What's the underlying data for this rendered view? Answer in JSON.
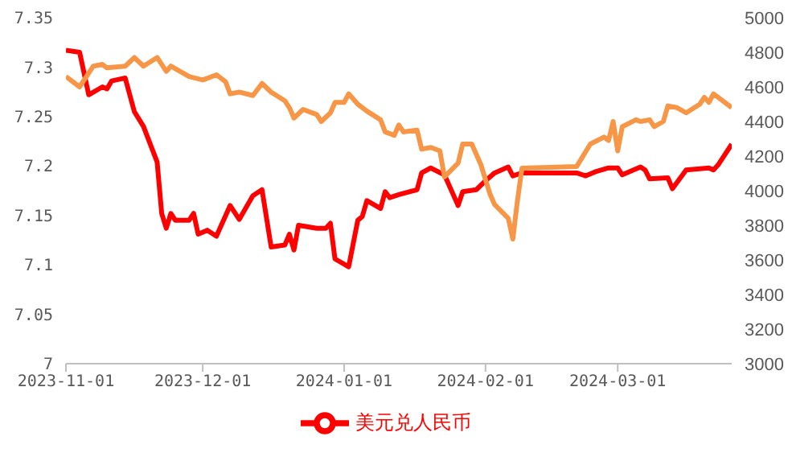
{
  "chart_data": {
    "type": "line",
    "xlim": [
      "2023-11-01",
      "2024-03-26"
    ],
    "xticks": [
      "2023-11-01",
      "2023-12-01",
      "2024-01-01",
      "2024-02-01",
      "2024-03-01"
    ],
    "ylim": [
      7,
      7.35
    ],
    "yticks": [
      7,
      7.05,
      7.1,
      7.15,
      7.2,
      7.25,
      7.3,
      7.35
    ],
    "y2lim": [
      3000,
      5000
    ],
    "y2ticks": [
      3000,
      3200,
      3400,
      3600,
      3800,
      4000,
      4200,
      4400,
      4600,
      4800,
      5000
    ],
    "grid": false,
    "legend": "bottom",
    "marker": "none",
    "line_style": "solid",
    "series": [
      {
        "name": "美元兑人民币",
        "color": "#ff0000",
        "x": [
          "2023-11-01",
          "2023-11-04",
          "2023-11-06",
          "2023-11-09",
          "2023-11-10",
          "2023-11-11",
          "2023-11-14",
          "2023-11-16",
          "2023-11-18",
          "2023-11-21",
          "2023-11-22",
          "2023-11-23",
          "2023-11-24",
          "2023-11-25",
          "2023-11-28",
          "2023-11-29",
          "2023-11-30",
          "2023-12-02",
          "2023-12-04",
          "2023-12-07",
          "2023-12-09",
          "2023-12-12",
          "2023-12-14",
          "2023-12-16",
          "2023-12-19",
          "2023-12-20",
          "2023-12-21",
          "2023-12-22",
          "2023-12-26",
          "2023-12-28",
          "2023-12-29",
          "2023-12-30",
          "2024-01-02",
          "2024-01-04",
          "2024-01-05",
          "2024-01-06",
          "2024-01-09",
          "2024-01-10",
          "2024-01-11",
          "2024-01-13",
          "2024-01-17",
          "2024-01-18",
          "2024-01-20",
          "2024-01-23",
          "2024-01-26",
          "2024-01-27",
          "2024-01-30",
          "2024-02-01",
          "2024-02-03",
          "2024-02-06",
          "2024-02-07",
          "2024-02-09",
          "2024-02-21",
          "2024-02-23",
          "2024-02-25",
          "2024-02-28",
          "2024-03-01",
          "2024-03-02",
          "2024-03-06",
          "2024-03-07",
          "2024-03-08",
          "2024-03-12",
          "2024-03-13",
          "2024-03-16",
          "2024-03-21",
          "2024-03-22",
          "2024-03-23",
          "2024-03-26"
        ],
        "values": [
          7.317,
          7.315,
          7.272,
          7.28,
          7.278,
          7.286,
          7.289,
          7.255,
          7.24,
          7.204,
          7.152,
          7.137,
          7.152,
          7.145,
          7.145,
          7.152,
          7.131,
          7.135,
          7.129,
          7.16,
          7.146,
          7.17,
          7.176,
          7.118,
          7.12,
          7.131,
          7.115,
          7.14,
          7.137,
          7.137,
          7.142,
          7.106,
          7.098,
          7.145,
          7.149,
          7.165,
          7.157,
          7.174,
          7.168,
          7.171,
          7.176,
          7.193,
          7.198,
          7.191,
          7.16,
          7.174,
          7.176,
          7.185,
          7.193,
          7.199,
          7.19,
          7.193,
          7.193,
          7.19,
          7.194,
          7.198,
          7.198,
          7.191,
          7.199,
          7.196,
          7.187,
          7.188,
          7.177,
          7.196,
          7.198,
          7.196,
          7.201,
          7.222
        ]
      },
      {
        "color": "#f79646",
        "axis": "y2",
        "x": [
          "2023-11-01",
          "2023-11-02",
          "2023-11-04",
          "2023-11-05",
          "2023-11-07",
          "2023-11-09",
          "2023-11-10",
          "2023-11-14",
          "2023-11-16",
          "2023-11-18",
          "2023-11-21",
          "2023-11-23",
          "2023-11-24",
          "2023-11-28",
          "2023-12-01",
          "2023-12-04",
          "2023-12-06",
          "2023-12-07",
          "2023-12-09",
          "2023-12-12",
          "2023-12-14",
          "2023-12-16",
          "2023-12-19",
          "2023-12-20",
          "2023-12-21",
          "2023-12-23",
          "2023-12-26",
          "2023-12-27",
          "2023-12-29",
          "2023-12-30",
          "2024-01-01",
          "2024-01-02",
          "2024-01-04",
          "2024-01-06",
          "2024-01-09",
          "2024-01-10",
          "2024-01-12",
          "2024-01-13",
          "2024-01-14",
          "2024-01-17",
          "2024-01-18",
          "2024-01-20",
          "2024-01-22",
          "2024-01-23",
          "2024-01-26",
          "2024-01-27",
          "2024-01-29",
          "2024-01-31",
          "2024-02-02",
          "2024-02-03",
          "2024-02-06",
          "2024-02-07",
          "2024-02-08",
          "2024-02-09",
          "2024-02-21",
          "2024-02-24",
          "2024-02-27",
          "2024-02-28",
          "2024-02-29",
          "2024-03-01",
          "2024-03-02",
          "2024-03-05",
          "2024-03-06",
          "2024-03-08",
          "2024-03-09",
          "2024-03-11",
          "2024-03-12",
          "2024-03-14",
          "2024-03-16",
          "2024-03-19",
          "2024-03-20",
          "2024-03-21",
          "2024-03-22",
          "2024-03-23",
          "2024-03-26"
        ],
        "values": [
          4660,
          4640,
          4600,
          4640,
          4720,
          4730,
          4710,
          4720,
          4770,
          4720,
          4770,
          4690,
          4720,
          4660,
          4640,
          4670,
          4630,
          4560,
          4570,
          4550,
          4620,
          4570,
          4520,
          4480,
          4420,
          4470,
          4440,
          4400,
          4450,
          4510,
          4510,
          4560,
          4500,
          4460,
          4410,
          4340,
          4320,
          4380,
          4340,
          4350,
          4240,
          4250,
          4230,
          4080,
          4160,
          4270,
          4270,
          4150,
          3980,
          3920,
          3840,
          3720,
          3940,
          4130,
          4140,
          4270,
          4310,
          4290,
          4400,
          4230,
          4370,
          4410,
          4400,
          4410,
          4370,
          4400,
          4490,
          4480,
          4450,
          4500,
          4540,
          4510,
          4560,
          4540,
          4480
        ]
      }
    ]
  }
}
